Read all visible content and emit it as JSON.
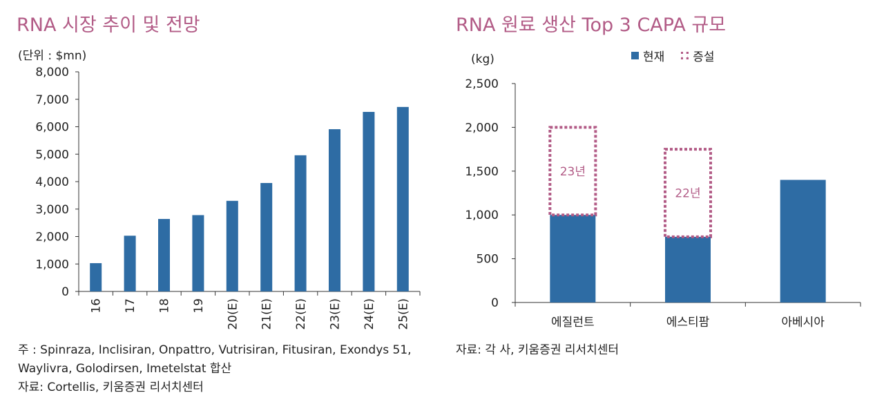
{
  "left": {
    "title": "RNA 시장 추이 및 전망",
    "unit": "(단위 : $mn)",
    "notes": [
      "주 : Spinraza, Inclisiran, Onpattro, Vutrisiran, Fitusiran, Exondys 51,",
      "Waylivra, Golodirsen, Imetelstat 합산",
      "자료: Cortellis, 키움증권 리서치센터"
    ]
  },
  "right": {
    "title": "RNA 원료 생산 Top 3 CAPA 규모",
    "unit": "(kg)",
    "legend": {
      "current": "현재",
      "expansion": "증설"
    },
    "source": "자료: 각 사, 키움증권 리서치센터"
  },
  "colors": {
    "bar": "#2e6ca4",
    "accent": "#b25b86",
    "axis": "#333333"
  },
  "chart_data": [
    {
      "type": "bar",
      "title": "RNA 시장 추이 및 전망",
      "ylabel": "(단위 : $mn)",
      "categories": [
        "16",
        "17",
        "18",
        "19",
        "20(E)",
        "21(E)",
        "22(E)",
        "23(E)",
        "24(E)",
        "25(E)"
      ],
      "values": [
        1030,
        2030,
        2640,
        2780,
        3300,
        3950,
        4960,
        5910,
        6540,
        6720
      ],
      "ylim": [
        0,
        8000
      ],
      "yticks": [
        0,
        1000,
        2000,
        3000,
        4000,
        5000,
        6000,
        7000,
        8000
      ],
      "ytick_labels": [
        "0",
        "1,000",
        "2,000",
        "3,000",
        "4,000",
        "5,000",
        "6,000",
        "7,000",
        "8,000"
      ],
      "grid": false
    },
    {
      "type": "bar",
      "title": "RNA 원료 생산 Top 3 CAPA 규모",
      "ylabel": "(kg)",
      "categories": [
        "에질런트",
        "에스티팜",
        "아베시아"
      ],
      "series": [
        {
          "name": "현재",
          "values": [
            1000,
            750,
            1400
          ]
        },
        {
          "name": "증설",
          "values": [
            1000,
            1000,
            null
          ]
        }
      ],
      "annotations": [
        "23년",
        "22년",
        ""
      ],
      "ylim": [
        0,
        2500
      ],
      "yticks": [
        0,
        500,
        1000,
        1500,
        2000,
        2500
      ],
      "ytick_labels": [
        "0",
        "500",
        "1,000",
        "1,500",
        "2,000",
        "2,500"
      ],
      "legend_position": "top",
      "grid": false
    }
  ]
}
